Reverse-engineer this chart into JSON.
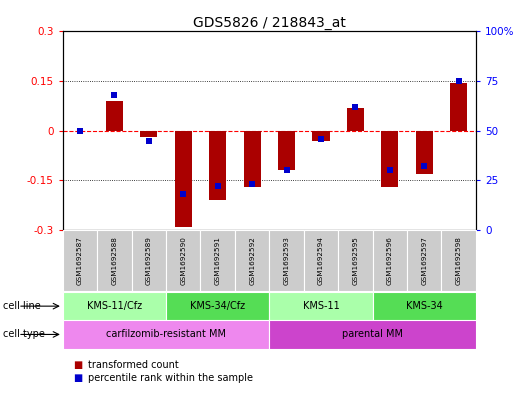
{
  "title": "GDS5826 / 218843_at",
  "samples": [
    "GSM1692587",
    "GSM1692588",
    "GSM1692589",
    "GSM1692590",
    "GSM1692591",
    "GSM1692592",
    "GSM1692593",
    "GSM1692594",
    "GSM1692595",
    "GSM1692596",
    "GSM1692597",
    "GSM1692598"
  ],
  "transformed_count": [
    0.0,
    0.09,
    -0.02,
    -0.29,
    -0.21,
    -0.17,
    -0.12,
    -0.03,
    0.07,
    -0.17,
    -0.13,
    0.145
  ],
  "percentile_rank": [
    50,
    68,
    45,
    18,
    22,
    23,
    30,
    46,
    62,
    30,
    32,
    75
  ],
  "ylim_left": [
    -0.3,
    0.3
  ],
  "ylim_right": [
    0,
    100
  ],
  "yticks_left": [
    -0.3,
    -0.15,
    0,
    0.15,
    0.3
  ],
  "yticks_right": [
    0,
    25,
    50,
    75,
    100
  ],
  "ytick_labels_left": [
    "-0.3",
    "-0.15",
    "0",
    "0.15",
    "0.3"
  ],
  "ytick_labels_right": [
    "0",
    "25",
    "50",
    "75",
    "100%"
  ],
  "cell_line_groups": [
    {
      "label": "KMS-11/Cfz",
      "start": 0,
      "end": 2,
      "color": "#aaffaa"
    },
    {
      "label": "KMS-34/Cfz",
      "start": 3,
      "end": 5,
      "color": "#55dd55"
    },
    {
      "label": "KMS-11",
      "start": 6,
      "end": 8,
      "color": "#aaffaa"
    },
    {
      "label": "KMS-34",
      "start": 9,
      "end": 11,
      "color": "#55dd55"
    }
  ],
  "cell_type_groups": [
    {
      "label": "carfilzomib-resistant MM",
      "start": 0,
      "end": 5,
      "color": "#ee88ee"
    },
    {
      "label": "parental MM",
      "start": 6,
      "end": 11,
      "color": "#cc44cc"
    }
  ],
  "bar_color": "#aa0000",
  "dot_color": "#0000cc",
  "background_color": "#ffffff",
  "tick_label_bg": "#cccccc",
  "cell_line_label": "cell line",
  "cell_type_label": "cell type",
  "legend_items": [
    "transformed count",
    "percentile rank within the sample"
  ]
}
